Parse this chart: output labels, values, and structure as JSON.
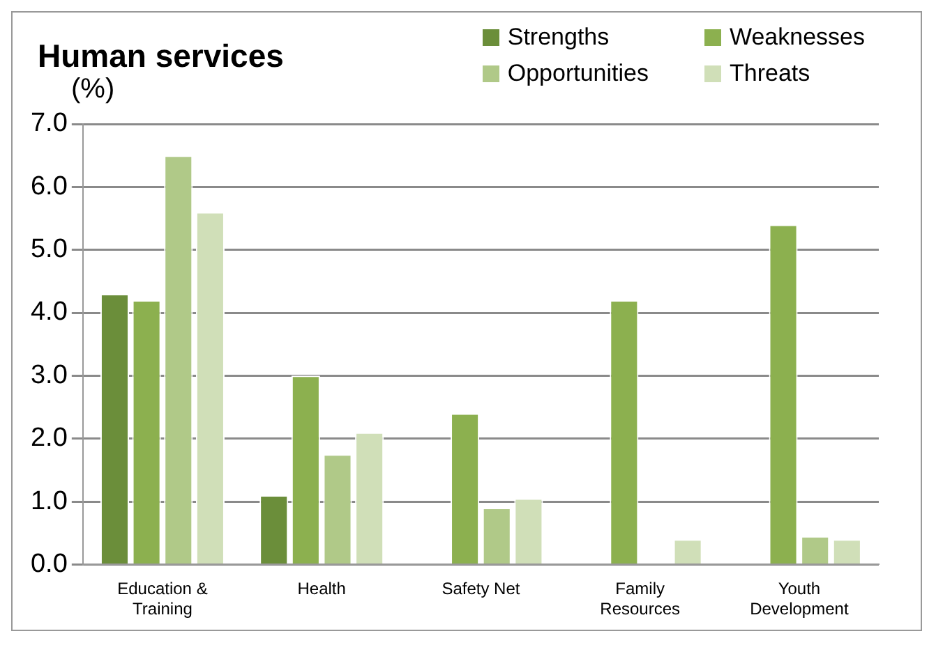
{
  "chart_data": {
    "type": "bar",
    "title": "Human services",
    "ylabel": "(%)",
    "categories": [
      "Education & Training",
      "Health",
      "Safety Net",
      "Family Resources",
      "Youth Development"
    ],
    "series": [
      {
        "name": "Strengths",
        "color": "#6b8e3a",
        "values": [
          4.3,
          1.1,
          0,
          0,
          0
        ]
      },
      {
        "name": "Weaknesses",
        "color": "#8cb04f",
        "values": [
          4.2,
          3.0,
          2.4,
          4.2,
          5.4
        ]
      },
      {
        "name": "Opportunities",
        "color": "#b0c988",
        "values": [
          6.5,
          1.75,
          0.9,
          0,
          0.45
        ]
      },
      {
        "name": "Threats",
        "color": "#d0dfb8",
        "values": [
          5.6,
          2.1,
          1.05,
          0.4,
          0.4
        ]
      }
    ],
    "ylim": [
      0,
      7
    ],
    "yticks": [
      {
        "value": 0,
        "label": "0.0"
      },
      {
        "value": 1,
        "label": "1.0"
      },
      {
        "value": 2,
        "label": "2.0"
      },
      {
        "value": 3,
        "label": "3.0"
      },
      {
        "value": 4,
        "label": "4.0"
      },
      {
        "value": 5,
        "label": "5.0"
      },
      {
        "value": 6,
        "label": "6.0"
      },
      {
        "value": 7,
        "label": "7.0"
      }
    ],
    "grid": "y",
    "legend": "top right"
  }
}
